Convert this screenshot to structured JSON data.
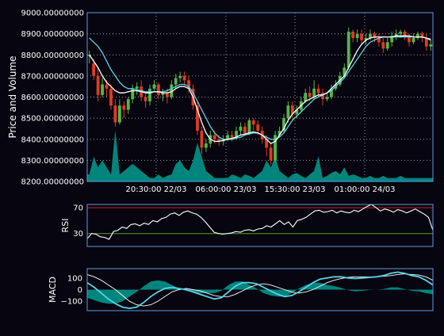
{
  "colors": {
    "background": "#07050f",
    "frame": "#5c9ce6",
    "grid": "#9a9aa0",
    "text": "#ffffff",
    "candle_up": "#53b848",
    "candle_down": "#e03b24",
    "ma_fast": "#ffffff",
    "ma_slow": "#5ad2e8",
    "volume_fill": "#00948a",
    "rsi_line": "#ffffff",
    "rsi_upper": "#cc2222",
    "rsi_lower": "#44aa22",
    "macd_line": "#5ad2e8",
    "signal_line": "#ffffff",
    "hist_fill": "#00948a"
  },
  "chart_data": [
    {
      "type": "candlestick",
      "panel": "price",
      "ylabel": "Price and Volume",
      "ylim": [
        8200,
        9000
      ],
      "yticks": [
        "8200.00000000",
        "8300.00000000",
        "8400.00000000",
        "8500.00000000",
        "8600.00000000",
        "8700.00000000",
        "8800.00000000",
        "8900.00000000",
        "9000.00000000"
      ],
      "xtick_labels": [
        "20:30:00 22/03",
        "06:00:00 23/03",
        "15:30:00 23/03",
        "01:00:00 24/03"
      ],
      "grid": true,
      "candles": [
        [
          8795,
          8800,
          8760,
          8820
        ],
        [
          8760,
          8700,
          8680,
          8780
        ],
        [
          8700,
          8610,
          8580,
          8740
        ],
        [
          8610,
          8660,
          8600,
          8690
        ],
        [
          8660,
          8640,
          8600,
          8680
        ],
        [
          8640,
          8560,
          8540,
          8660
        ],
        [
          8560,
          8480,
          8460,
          8590
        ],
        [
          8480,
          8560,
          8470,
          8590
        ],
        [
          8560,
          8540,
          8500,
          8580
        ],
        [
          8540,
          8590,
          8520,
          8600
        ],
        [
          8590,
          8640,
          8570,
          8660
        ],
        [
          8640,
          8650,
          8610,
          8670
        ],
        [
          8650,
          8600,
          8580,
          8680
        ],
        [
          8600,
          8580,
          8550,
          8620
        ],
        [
          8580,
          8640,
          8560,
          8660
        ],
        [
          8640,
          8660,
          8630,
          8680
        ],
        [
          8660,
          8610,
          8590,
          8670
        ],
        [
          8610,
          8620,
          8580,
          8640
        ],
        [
          8620,
          8600,
          8570,
          8640
        ],
        [
          8600,
          8660,
          8590,
          8680
        ],
        [
          8660,
          8690,
          8640,
          8710
        ],
        [
          8690,
          8700,
          8670,
          8720
        ],
        [
          8700,
          8680,
          8660,
          8720
        ],
        [
          8680,
          8640,
          8620,
          8700
        ],
        [
          8640,
          8560,
          8540,
          8660
        ],
        [
          8560,
          8440,
          8420,
          8580
        ],
        [
          8440,
          8360,
          8330,
          8460
        ],
        [
          8360,
          8380,
          8340,
          8400
        ],
        [
          8380,
          8420,
          8360,
          8440
        ],
        [
          8420,
          8400,
          8380,
          8440
        ],
        [
          8400,
          8390,
          8370,
          8420
        ],
        [
          8390,
          8400,
          8370,
          8420
        ],
        [
          8400,
          8420,
          8390,
          8440
        ],
        [
          8420,
          8410,
          8390,
          8440
        ],
        [
          8410,
          8440,
          8400,
          8460
        ],
        [
          8440,
          8460,
          8420,
          8480
        ],
        [
          8460,
          8430,
          8420,
          8480
        ],
        [
          8430,
          8490,
          8420,
          8500
        ],
        [
          8490,
          8470,
          8440,
          8500
        ],
        [
          8470,
          8440,
          8420,
          8490
        ],
        [
          8440,
          8400,
          8380,
          8460
        ],
        [
          8400,
          8360,
          8320,
          8420
        ],
        [
          8360,
          8300,
          8280,
          8380
        ],
        [
          8300,
          8420,
          8290,
          8440
        ],
        [
          8420,
          8440,
          8410,
          8460
        ],
        [
          8440,
          8500,
          8430,
          8520
        ],
        [
          8500,
          8560,
          8480,
          8580
        ],
        [
          8560,
          8520,
          8490,
          8580
        ],
        [
          8520,
          8540,
          8500,
          8560
        ],
        [
          8540,
          8580,
          8530,
          8600
        ],
        [
          8580,
          8620,
          8570,
          8640
        ],
        [
          8620,
          8600,
          8580,
          8650
        ],
        [
          8600,
          8640,
          8590,
          8680
        ],
        [
          8640,
          8620,
          8600,
          8660
        ],
        [
          8620,
          8590,
          8560,
          8640
        ],
        [
          8590,
          8600,
          8580,
          8620
        ],
        [
          8600,
          8640,
          8590,
          8660
        ],
        [
          8640,
          8660,
          8630,
          8680
        ],
        [
          8660,
          8700,
          8650,
          8720
        ],
        [
          8700,
          8740,
          8690,
          8760
        ],
        [
          8740,
          8910,
          8730,
          8930
        ],
        [
          8910,
          8880,
          8860,
          8920
        ],
        [
          8880,
          8900,
          8860,
          8920
        ],
        [
          8900,
          8870,
          8850,
          8920
        ],
        [
          8870,
          8880,
          8850,
          8900
        ],
        [
          8880,
          8900,
          8870,
          8920
        ],
        [
          8900,
          8880,
          8860,
          8910
        ],
        [
          8880,
          8860,
          8840,
          8900
        ],
        [
          8860,
          8830,
          8810,
          8880
        ],
        [
          8830,
          8860,
          8820,
          8880
        ],
        [
          8860,
          8890,
          8840,
          8910
        ],
        [
          8890,
          8900,
          8870,
          8920
        ],
        [
          8900,
          8910,
          8880,
          8920
        ],
        [
          8910,
          8890,
          8870,
          8920
        ],
        [
          8890,
          8860,
          8840,
          8900
        ],
        [
          8860,
          8880,
          8850,
          8900
        ],
        [
          8880,
          8900,
          8870,
          8910
        ],
        [
          8900,
          8880,
          8860,
          8910
        ],
        [
          8880,
          8840,
          8820,
          8900
        ],
        [
          8840,
          8850,
          8820,
          8870
        ]
      ],
      "ma_fast": [
        8800,
        8770,
        8740,
        8700,
        8670,
        8650,
        8630,
        8620,
        8620,
        8625,
        8630,
        8630,
        8625,
        8620,
        8620,
        8625,
        8625,
        8620,
        8620,
        8625,
        8640,
        8650,
        8650,
        8640,
        8600,
        8540,
        8480,
        8430,
        8400,
        8390,
        8390,
        8395,
        8400,
        8405,
        8410,
        8420,
        8425,
        8430,
        8435,
        8430,
        8420,
        8400,
        8380,
        8390,
        8420,
        8450,
        8490,
        8520,
        8540,
        8560,
        8580,
        8590,
        8600,
        8610,
        8610,
        8620,
        8640,
        8660,
        8680,
        8700,
        8740,
        8780,
        8820,
        8850,
        8870,
        8880,
        8885,
        8885,
        8885,
        8885,
        8885,
        8890,
        8890,
        8890,
        8890,
        8885,
        8885,
        8885,
        8880,
        8870
      ],
      "ma_slow": [
        8880,
        8860,
        8840,
        8810,
        8770,
        8730,
        8700,
        8670,
        8650,
        8640,
        8640,
        8635,
        8630,
        8625,
        8625,
        8625,
        8625,
        8625,
        8630,
        8640,
        8650,
        8660,
        8660,
        8650,
        8620,
        8580,
        8540,
        8500,
        8460,
        8430,
        8410,
        8400,
        8400,
        8400,
        8405,
        8410,
        8420,
        8425,
        8430,
        8430,
        8420,
        8410,
        8400,
        8400,
        8410,
        8430,
        8460,
        8490,
        8510,
        8530,
        8550,
        8570,
        8590,
        8600,
        8610,
        8620,
        8630,
        8650,
        8670,
        8690,
        8720,
        8750,
        8780,
        8810,
        8840,
        8860,
        8870,
        8880,
        8885,
        8885,
        8885,
        8885,
        8885,
        8885,
        8885,
        8885,
        8885,
        8885,
        8880,
        8875
      ],
      "volume": [
        0.1,
        0.35,
        0.2,
        0.3,
        0.2,
        0.1,
        0.05,
        0.1,
        0.15,
        0.2,
        0.25,
        0.2,
        0.15,
        0.1,
        0.05,
        0.05,
        0.1,
        0.05,
        0.08,
        0.1,
        0.25,
        0.3,
        0.2,
        0.15,
        0.3,
        0.55,
        0.35,
        0.15,
        0.1,
        0.05,
        0.05,
        0.05,
        0.05,
        0.1,
        0.08,
        0.05,
        0.1,
        0.08,
        0.05,
        0.1,
        0.15,
        0.3,
        0.2,
        0.35,
        0.15,
        0.1,
        0.05,
        0.1,
        0.12,
        0.08,
        0.05,
        0.1,
        0.15,
        0.1,
        0.05,
        0.08,
        0.12,
        0.15,
        0.1,
        0.2,
        0.08,
        0.1,
        0.08,
        0.05,
        0.05,
        0.08,
        0.05,
        0.05,
        0.08,
        0.05,
        0.05,
        0.05,
        0.08,
        0.05,
        0.05,
        0.05,
        0.05,
        0.05,
        0.05,
        0.05
      ],
      "volume_peaks": [
        [
          6,
          0.73
        ],
        [
          53,
          0.36
        ]
      ]
    },
    {
      "type": "line",
      "panel": "rsi",
      "ylabel": "RSI",
      "ylim": [
        10,
        75
      ],
      "yticks": [
        "70",
        "30"
      ],
      "reference_lines": [
        70,
        30
      ],
      "values": [
        22,
        30,
        29,
        25,
        24,
        21,
        33,
        35,
        40,
        38,
        44,
        45,
        42,
        46,
        44,
        50,
        48,
        53,
        55,
        60,
        62,
        58,
        63,
        65,
        62,
        60,
        55,
        48,
        40,
        32,
        30,
        29,
        30,
        31,
        33,
        32,
        35,
        36,
        34,
        37,
        38,
        42,
        40,
        45,
        50,
        44,
        48,
        40,
        50,
        52,
        55,
        60,
        65,
        66,
        63,
        64,
        66,
        62,
        65,
        63,
        62,
        66,
        64,
        68,
        72,
        75,
        70,
        65,
        68,
        66,
        63,
        67,
        65,
        62,
        65,
        68,
        64,
        60,
        55,
        35
      ]
    },
    {
      "type": "line",
      "panel": "macd",
      "ylabel": "MACD",
      "ylim": [
        -180,
        180
      ],
      "yticks": [
        "100",
        "0",
        "−100"
      ],
      "macd": [
        60,
        20,
        -30,
        -80,
        -120,
        -150,
        -160,
        -150,
        -110,
        -60,
        -20,
        10,
        20,
        10,
        0,
        -20,
        -40,
        -60,
        -80,
        -70,
        -20,
        30,
        60,
        60,
        50,
        20,
        -10,
        -40,
        -60,
        -50,
        -20,
        20,
        60,
        90,
        100,
        110,
        110,
        100,
        95,
        100,
        105,
        110,
        120,
        140,
        150,
        140,
        120,
        110,
        80,
        40
      ],
      "signal": [
        130,
        110,
        80,
        40,
        0,
        -50,
        -100,
        -130,
        -140,
        -130,
        -100,
        -60,
        -20,
        0,
        10,
        0,
        -10,
        -30,
        -50,
        -60,
        -60,
        -40,
        -10,
        20,
        40,
        50,
        40,
        20,
        0,
        -20,
        -30,
        -20,
        0,
        30,
        60,
        80,
        95,
        105,
        110,
        110,
        108,
        110,
        115,
        120,
        130,
        135,
        130,
        125,
        110,
        80
      ]
    }
  ]
}
